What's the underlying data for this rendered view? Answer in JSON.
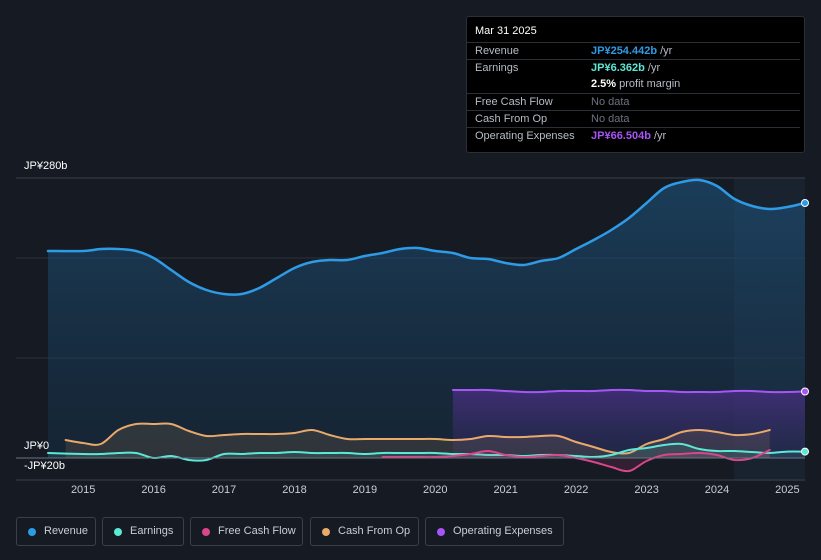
{
  "tooltip": {
    "date": "Mar 31 2025",
    "rows": [
      {
        "label": "Revenue",
        "value": "JP¥254.442b",
        "unit": " /yr",
        "color": "#2e9be6"
      },
      {
        "label": "Earnings",
        "value": "JP¥6.362b",
        "unit": " /yr",
        "color": "#5ce8d7"
      },
      {
        "label": "",
        "value": "2.5%",
        "unit": " profit margin",
        "color": "#ffffff"
      },
      {
        "label": "Free Cash Flow",
        "value": "No data",
        "unit": "",
        "color": "#6b7280"
      },
      {
        "label": "Cash From Op",
        "value": "No data",
        "unit": "",
        "color": "#6b7280"
      },
      {
        "label": "Operating Expenses",
        "value": "JP¥66.504b",
        "unit": " /yr",
        "color": "#a855f7"
      }
    ]
  },
  "legend": [
    {
      "label": "Revenue",
      "color": "#2e9be6"
    },
    {
      "label": "Earnings",
      "color": "#5ce8d7"
    },
    {
      "label": "Free Cash Flow",
      "color": "#d9468a"
    },
    {
      "label": "Cash From Op",
      "color": "#e8a96b"
    },
    {
      "label": "Operating Expenses",
      "color": "#a855f7"
    }
  ],
  "chart_data": {
    "type": "line",
    "title": "",
    "xlabel": "",
    "ylabel": "",
    "y_top_label": "JP¥280b",
    "y_zero_label": "JP¥0",
    "y_bottom_label": "-JP¥20b",
    "ylim": [
      -20,
      280
    ],
    "xlim": [
      2014.5,
      2025.25
    ],
    "x_ticks": [
      2015,
      2016,
      2017,
      2018,
      2019,
      2020,
      2021,
      2022,
      2023,
      2024,
      2025
    ],
    "x_tick_labels": [
      "2015",
      "2016",
      "2017",
      "2018",
      "2019",
      "2020",
      "2021",
      "2022",
      "2023",
      "2024",
      "2025"
    ],
    "forecast_start": 2024.25,
    "series": [
      {
        "name": "Revenue",
        "color": "#2e9be6",
        "area": true,
        "x": [
          2014.5,
          2015.0,
          2015.25,
          2015.5,
          2015.75,
          2016.0,
          2016.25,
          2016.5,
          2016.75,
          2017.0,
          2017.25,
          2017.5,
          2017.75,
          2018.0,
          2018.25,
          2018.5,
          2018.75,
          2019.0,
          2019.25,
          2019.5,
          2019.75,
          2020.0,
          2020.25,
          2020.5,
          2020.75,
          2021.0,
          2021.25,
          2021.5,
          2021.75,
          2022.0,
          2022.25,
          2022.5,
          2022.75,
          2023.0,
          2023.25,
          2023.5,
          2023.75,
          2024.0,
          2024.25,
          2024.5,
          2024.75,
          2025.0,
          2025.25
        ],
        "values": [
          207,
          207,
          209,
          209,
          207,
          200,
          188,
          176,
          168,
          164,
          164,
          170,
          180,
          190,
          196,
          198,
          198,
          202,
          205,
          209,
          210,
          207,
          205,
          200,
          199,
          195,
          193,
          197,
          200,
          209,
          218,
          228,
          240,
          255,
          270,
          276,
          278,
          272,
          259,
          252,
          249,
          251,
          255
        ]
      },
      {
        "name": "Operating Expenses",
        "color": "#a855f7",
        "area": true,
        "x": [
          2020.25,
          2020.5,
          2020.75,
          2021.0,
          2021.25,
          2021.5,
          2021.75,
          2022.0,
          2022.25,
          2022.5,
          2022.75,
          2023.0,
          2023.25,
          2023.5,
          2023.75,
          2024.0,
          2024.25,
          2024.5,
          2024.75,
          2025.0,
          2025.25
        ],
        "values": [
          68,
          68,
          68,
          67,
          66,
          66,
          67,
          67,
          67,
          68,
          68,
          67,
          67,
          66,
          66,
          66,
          67,
          67,
          66,
          66,
          66.5
        ]
      },
      {
        "name": "Cash From Op",
        "color": "#e8a96b",
        "area": true,
        "x": [
          2014.75,
          2015.0,
          2015.25,
          2015.5,
          2015.75,
          2016.0,
          2016.25,
          2016.5,
          2016.75,
          2017.0,
          2017.25,
          2017.5,
          2017.75,
          2018.0,
          2018.25,
          2018.5,
          2018.75,
          2019.0,
          2019.25,
          2019.5,
          2019.75,
          2020.0,
          2020.25,
          2020.5,
          2020.75,
          2021.0,
          2021.25,
          2021.5,
          2021.75,
          2022.0,
          2022.25,
          2022.5,
          2022.75,
          2023.0,
          2023.25,
          2023.5,
          2023.75,
          2024.0,
          2024.25,
          2024.5,
          2024.75
        ],
        "values": [
          18,
          15,
          14,
          28,
          34,
          34,
          34,
          27,
          22,
          23,
          24,
          24,
          24,
          25,
          28,
          23,
          19,
          19,
          19,
          19,
          19,
          19,
          18,
          19,
          22,
          21,
          21,
          22,
          22,
          16,
          11,
          6,
          5,
          14,
          19,
          26,
          28,
          26,
          23,
          24,
          28
        ]
      },
      {
        "name": "Earnings",
        "color": "#5ce8d7",
        "area": true,
        "x": [
          2014.5,
          2015.0,
          2015.25,
          2015.5,
          2015.75,
          2016.0,
          2016.25,
          2016.5,
          2016.75,
          2017.0,
          2017.25,
          2017.5,
          2017.75,
          2018.0,
          2018.25,
          2018.5,
          2018.75,
          2019.0,
          2019.25,
          2019.5,
          2019.75,
          2020.0,
          2020.25,
          2020.5,
          2020.75,
          2021.0,
          2021.25,
          2021.5,
          2021.75,
          2022.0,
          2022.25,
          2022.5,
          2022.75,
          2023.0,
          2023.25,
          2023.5,
          2023.75,
          2024.0,
          2024.25,
          2024.5,
          2024.75,
          2025.0,
          2025.25
        ],
        "values": [
          5,
          4,
          4,
          5,
          5,
          0,
          2,
          -2,
          -2,
          4,
          4,
          5,
          5,
          6,
          5,
          5,
          5,
          4,
          5,
          5,
          5,
          5,
          4,
          4,
          3,
          3,
          2,
          3,
          3,
          2,
          1,
          3,
          8,
          10,
          13,
          14,
          9,
          7,
          7,
          6,
          5,
          6.4,
          6.4
        ]
      },
      {
        "name": "Free Cash Flow",
        "color": "#d9468a",
        "area": true,
        "x": [
          2019.25,
          2019.5,
          2019.75,
          2020.0,
          2020.25,
          2020.5,
          2020.75,
          2021.0,
          2021.25,
          2021.5,
          2021.75,
          2022.0,
          2022.25,
          2022.5,
          2022.75,
          2023.0,
          2023.25,
          2023.5,
          2023.75,
          2024.0,
          2024.25,
          2024.5,
          2024.75
        ],
        "values": [
          1,
          1,
          1,
          1,
          2,
          4,
          7,
          3,
          1,
          2,
          3,
          0,
          -4,
          -9,
          -13,
          -3,
          3,
          4,
          5,
          3,
          -2,
          0,
          8
        ]
      }
    ]
  }
}
